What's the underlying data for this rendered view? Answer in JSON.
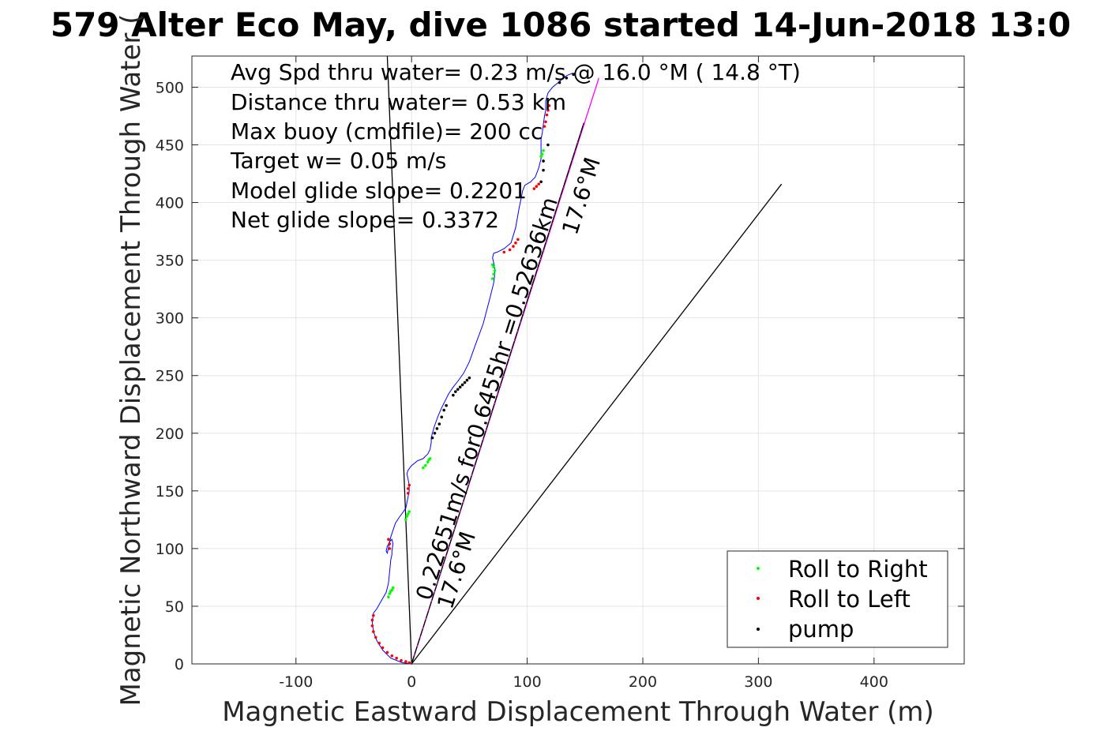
{
  "title": "579 Alter Eco May, dive 1086 started 14-Jun-2018 13:0",
  "chart_data": {
    "type": "line",
    "xlabel": "Magnetic Eastward Displacement Through Water (m)",
    "ylabel": "Magnetic Northward Displacement Through Water (",
    "xlim": [
      -190,
      478
    ],
    "ylim": [
      0,
      527
    ],
    "xticks": [
      -100,
      0,
      100,
      200,
      300,
      400
    ],
    "yticks": [
      0,
      50,
      100,
      150,
      200,
      250,
      300,
      350,
      400,
      450,
      500
    ],
    "xtick_labels": [
      "-100",
      "0",
      "100",
      "200",
      "300",
      "400"
    ],
    "ytick_labels": [
      "0",
      "50",
      "100",
      "150",
      "200",
      "250",
      "300",
      "350",
      "400",
      "450",
      "500"
    ],
    "grid": true,
    "legend_position": "bottom-right",
    "annotations": [
      "Avg Spd thru water=  0.23 m/s @  16.0 °M ( 14.8 °T)",
      "Distance thru water=  0.53 km",
      "Max buoy (cmdfile)= 200 cc",
      "Target w= 0.05 m/s",
      "Model glide slope= 0.2201",
      "Net glide slope= 0.3372"
    ],
    "track_label_1": "0.22651m/s for0.6455hr =0.52636km",
    "track_label_2": "17.6°M",
    "track_label_3": "17.6°M",
    "series": [
      {
        "name": "track",
        "color": "#0000ff",
        "x": [
          0,
          -8,
          -18,
          -25,
          -30,
          -33,
          -34,
          -33,
          -30,
          -26,
          -22,
          -20,
          -19,
          -18,
          -17,
          -17,
          -16,
          -17,
          -19,
          -21,
          -22,
          -21,
          -18,
          -14,
          -10,
          -5,
          -3,
          -2,
          -2,
          -3,
          -4,
          -3,
          0,
          5,
          10,
          14,
          16,
          17,
          17,
          18,
          20,
          23,
          26,
          29,
          32,
          36,
          40,
          45,
          50,
          55,
          62,
          68,
          71,
          72,
          72,
          71,
          70,
          71,
          74,
          80,
          86,
          90,
          93,
          95,
          96,
          98,
          103,
          107,
          110,
          112,
          112,
          112,
          112,
          113,
          114,
          115,
          116,
          116,
          118,
          122,
          128,
          134,
          139,
          142
        ],
        "y": [
          0,
          1,
          5,
          12,
          20,
          28,
          36,
          44,
          48,
          55,
          62,
          70,
          80,
          90,
          95,
          98,
          104,
          108,
          106,
          102,
          98,
          96,
          110,
          122,
          128,
          135,
          145,
          150,
          155,
          160,
          165,
          168,
          172,
          176,
          178,
          182,
          186,
          192,
          196,
          200,
          207,
          215,
          222,
          228,
          234,
          240,
          245,
          252,
          262,
          276,
          295,
          318,
          330,
          338,
          343,
          348,
          352,
          356,
          357,
          360,
          365,
          378,
          395,
          405,
          410,
          415,
          418,
          422,
          430,
          438,
          445,
          450,
          455,
          460,
          468,
          475,
          480,
          488,
          495,
          500,
          505,
          510,
          512,
          512
        ]
      },
      {
        "name": "Roll to Right",
        "color": "#00ff00",
        "x": [
          -20,
          -19,
          -18,
          -17,
          -16,
          -5,
          -4,
          -3,
          -2,
          10,
          12,
          14,
          15,
          16,
          70,
          71,
          72,
          71,
          70,
          112,
          113,
          114
        ],
        "y": [
          58,
          61,
          63,
          64,
          66,
          125,
          128,
          130,
          132,
          170,
          172,
          175,
          177,
          178,
          334,
          338,
          341,
          344,
          346,
          440,
          442,
          445
        ]
      },
      {
        "name": "Roll to Left",
        "color": "#ff0000",
        "x": [
          -2,
          -5,
          -9,
          -13,
          -17,
          -21,
          -25,
          -28,
          -31,
          -33,
          -34,
          -34,
          -33,
          -20,
          -19,
          -19,
          -3,
          -3,
          -2,
          80,
          85,
          88,
          90,
          92,
          106,
          108,
          110,
          115,
          116,
          117,
          118,
          119
        ],
        "y": [
          1,
          2,
          3,
          5,
          7,
          10,
          14,
          18,
          23,
          28,
          33,
          38,
          42,
          108,
          104,
          100,
          148,
          152,
          155,
          357,
          359,
          362,
          365,
          368,
          412,
          414,
          416,
          466,
          470,
          476,
          480,
          484
        ]
      },
      {
        "name": "pump",
        "color": "#000000",
        "x": [
          18,
          20,
          22,
          24,
          26,
          28,
          30,
          36,
          38,
          40,
          42,
          44,
          46,
          48,
          50,
          112,
          114,
          114,
          118,
          128,
          134,
          140
        ],
        "y": [
          196,
          200,
          204,
          208,
          214,
          220,
          224,
          233,
          236,
          238,
          240,
          242,
          244,
          246,
          248,
          418,
          428,
          436,
          450,
          504,
          508,
          511
        ]
      }
    ],
    "reference_lines": [
      {
        "name": "heading-line",
        "color": "#ff00ff",
        "from": [
          0,
          0
        ],
        "to": [
          162,
          508
        ]
      },
      {
        "name": "heading-line-black",
        "color": "#000000",
        "from": [
          0,
          0
        ],
        "to": [
          149,
          469
        ]
      },
      {
        "name": "current-line",
        "color": "#000000",
        "from": [
          0,
          0
        ],
        "to": [
          320,
          416
        ]
      },
      {
        "name": "left-line",
        "color": "#000000",
        "from": [
          0,
          0
        ],
        "to": [
          -21,
          527
        ]
      }
    ]
  },
  "legend": {
    "items": [
      {
        "label": "Roll to Right",
        "color": "#00ff00"
      },
      {
        "label": "Roll to Left",
        "color": "#ff0000"
      },
      {
        "label": "pump",
        "color": "#000000"
      }
    ]
  }
}
